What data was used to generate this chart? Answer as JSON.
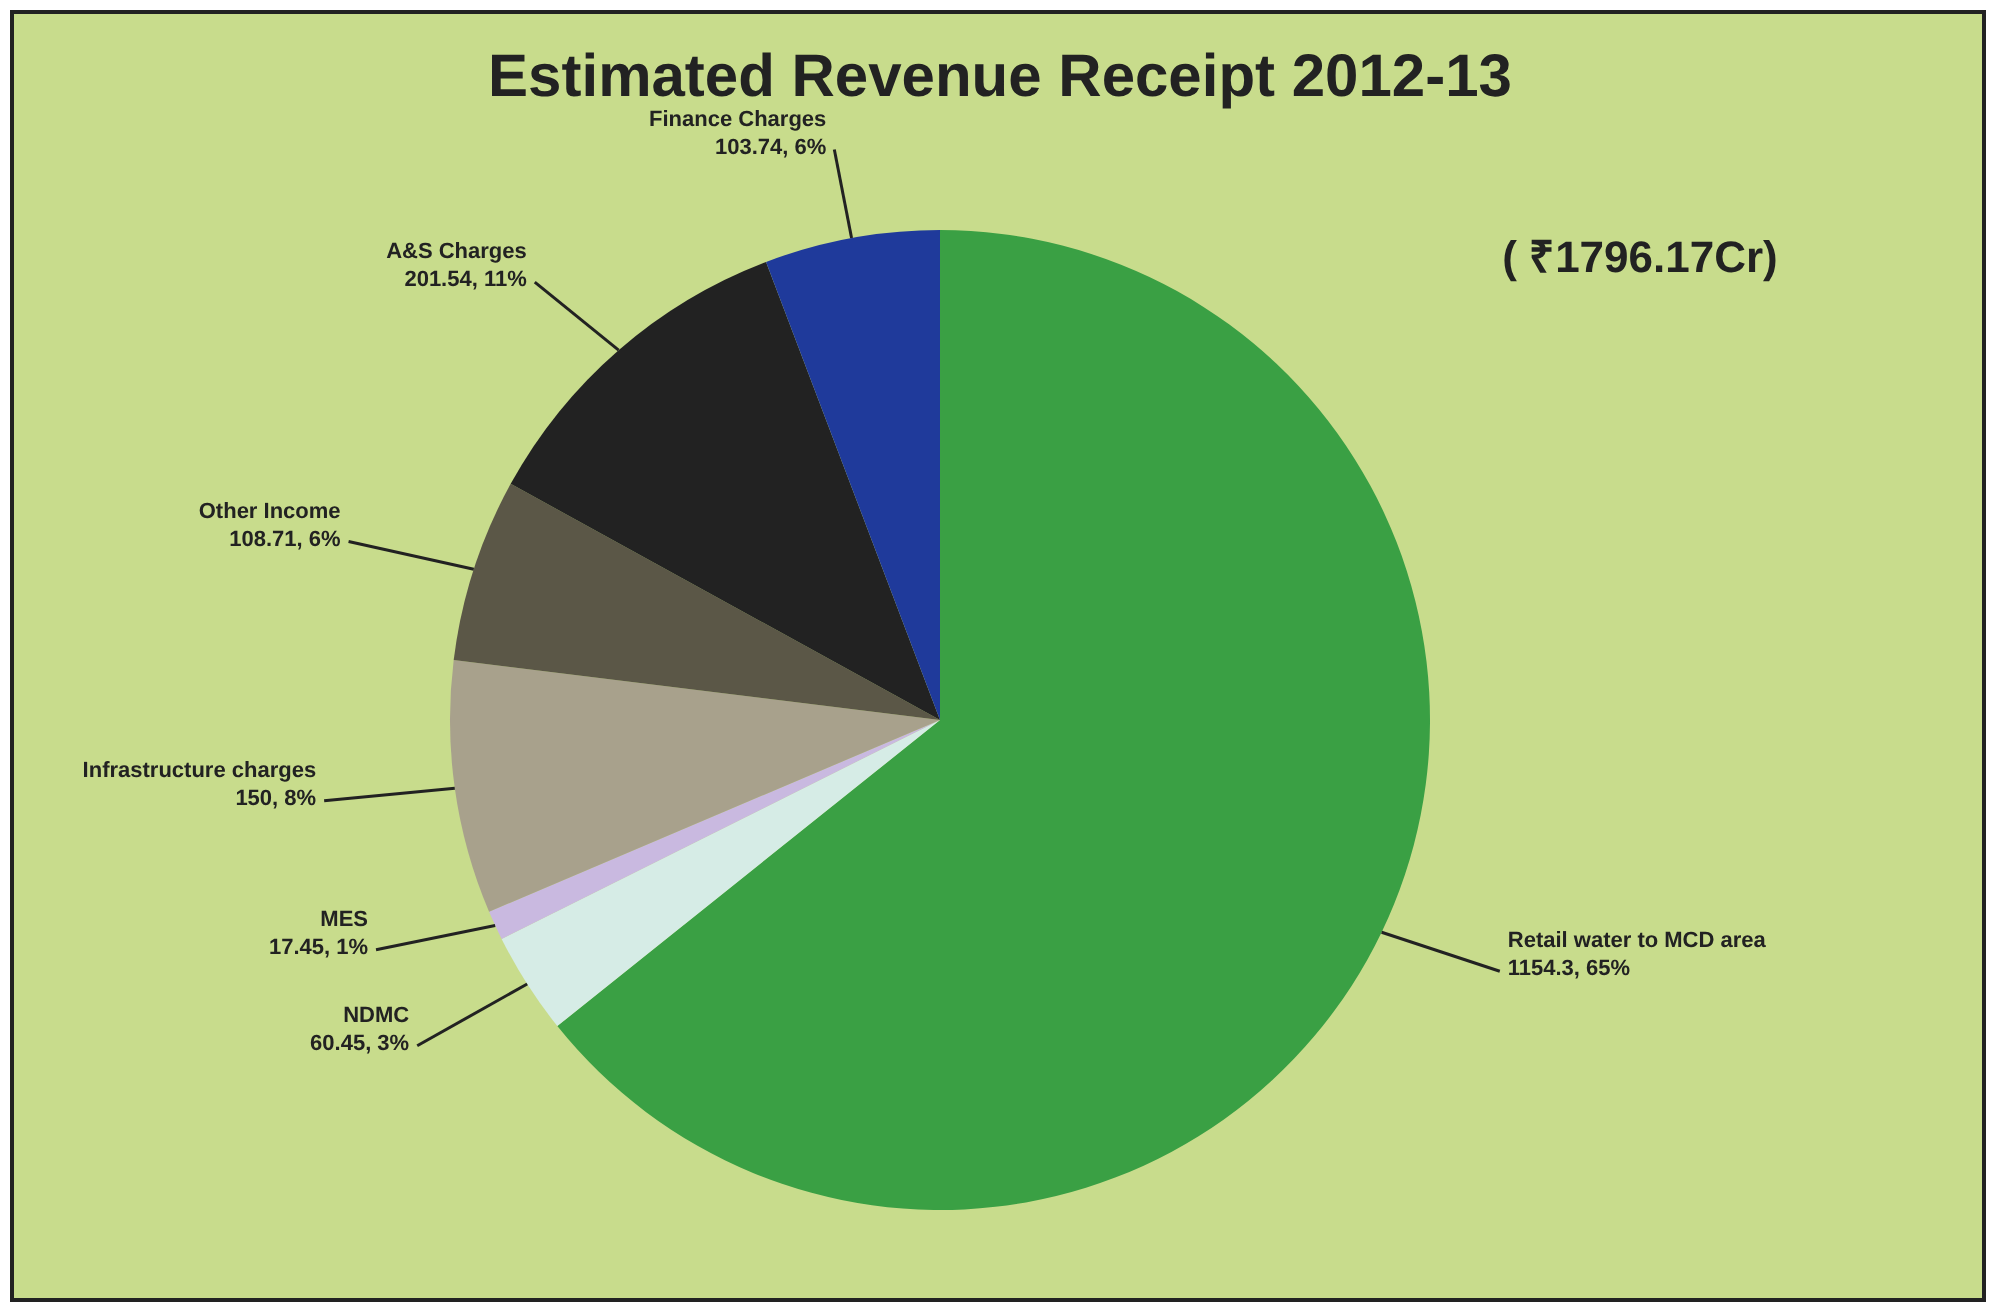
{
  "chart_data": {
    "type": "pie",
    "title": "Estimated Revenue Receipt 2012-13",
    "annotations": [
      "( ₹1796.17Cr)"
    ],
    "categories": [
      "Retail water to MCD area",
      "NDMC",
      "MES",
      "Infrastructure charges",
      "Other Income",
      "A&S Charges",
      "Finance Charges"
    ],
    "values": [
      1154.3,
      60.45,
      17.45,
      150,
      108.71,
      201.54,
      103.74
    ],
    "value_labels": [
      "1154.3, 65%",
      "60.45, 3%",
      "17.45, 1%",
      "150, 8%",
      "108.71, 6%",
      "201.54, 11%",
      "103.74, 6%"
    ],
    "colors": [
      "#3aa044",
      "#d6ece6",
      "#c9b9e0",
      "#a8a18c",
      "#5b5747",
      "#222222",
      "#1f3a9b"
    ],
    "legend": false
  }
}
